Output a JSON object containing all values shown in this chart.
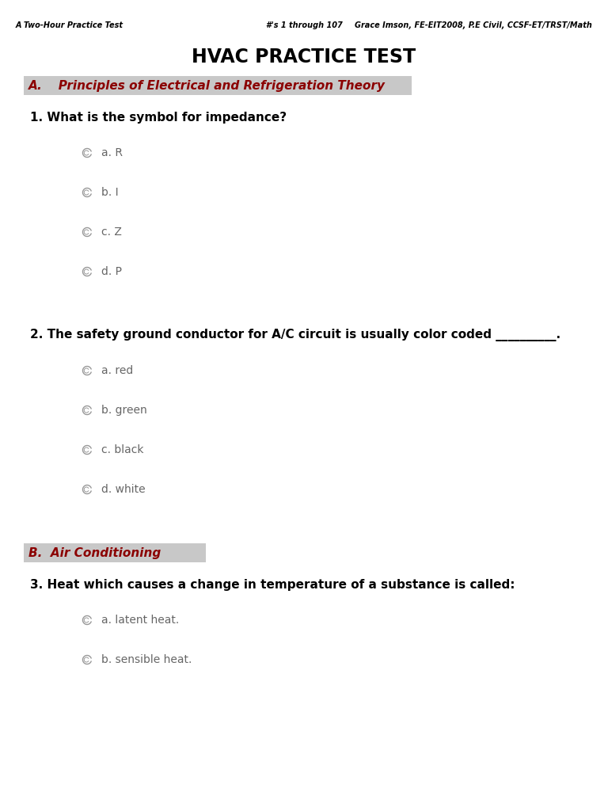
{
  "bg_color": "#ffffff",
  "header_left": "A Two-Hour Practice Test",
  "header_center": "#'s 1 through 107",
  "header_right": "Grace Imson, FE-EIT2008, P.E Civil, CCSF-ET/TRST/Math",
  "title": "HVAC PRACTICE TEST",
  "section_a_label": "A.",
  "section_a_text": "   Principles of Electrical and Refrigeration Theory",
  "section_a_bg": "#c8c8c8",
  "section_a_color": "#8b0000",
  "section_b_label": "B.",
  "section_b_text": "  Air Conditioning",
  "section_b_bg": "#c8c8c8",
  "section_b_color": "#8b0000",
  "q1": "1. What is the symbol for impedance?",
  "q1_options": [
    "a. R",
    "b. I",
    "c. Z",
    "d. P"
  ],
  "q2": "2. The safety ground conductor for A/C circuit is usually color coded __________.",
  "q2_options": [
    "a. red",
    "b. green",
    "c. black",
    "d. white"
  ],
  "q3": "3. Heat which causes a change in temperature of a substance is called:",
  "q3_options": [
    "a. latent heat.",
    "b. sensible heat."
  ],
  "radio_color": "#999999",
  "text_color": "#000000",
  "option_color": "#666666",
  "header_fontsize": 7,
  "title_fontsize": 17,
  "section_fontsize": 11,
  "question_fontsize": 11,
  "option_fontsize": 10
}
